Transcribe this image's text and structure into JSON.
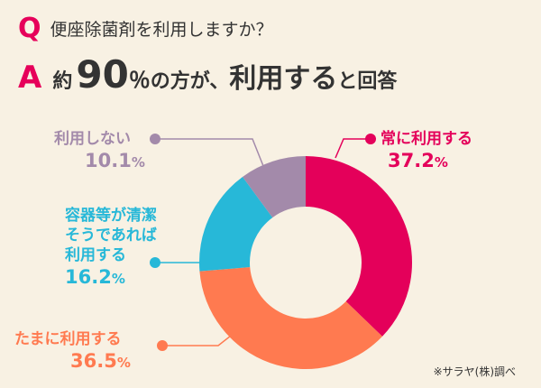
{
  "question": {
    "letter": "Q",
    "text": "便座除菌剤を利用しますか？"
  },
  "answer": {
    "letter": "A",
    "prefix": "約",
    "number": "90",
    "percent": "％",
    "middle": "の方が、",
    "emphasis": "利用する",
    "suffix": "と回答"
  },
  "chart_data": {
    "type": "pie",
    "categories": [
      "常に利用する",
      "たまに利用する",
      "容器等が清潔そうであれば利用する",
      "利用しない"
    ],
    "values": [
      37.2,
      36.5,
      16.2,
      10.1
    ],
    "colors": [
      "#e4005a",
      "#ff7a50",
      "#27b8d8",
      "#a38aaa"
    ]
  },
  "callouts": [
    {
      "lines": [
        "常に利用する"
      ],
      "value": "37.2",
      "unit": "%",
      "color": "#e4005a"
    },
    {
      "lines": [
        "たまに利用する"
      ],
      "value": "36.5",
      "unit": "%",
      "color": "#ff7a50"
    },
    {
      "lines": [
        "容器等が清潔",
        "そうであれば",
        "利用する"
      ],
      "value": "16.2",
      "unit": "%",
      "color": "#27b8d8"
    },
    {
      "lines": [
        "利用しない"
      ],
      "value": "10.1",
      "unit": "%",
      "color": "#a38aaa"
    }
  ],
  "source_note": "※サラヤ(株)調べ"
}
